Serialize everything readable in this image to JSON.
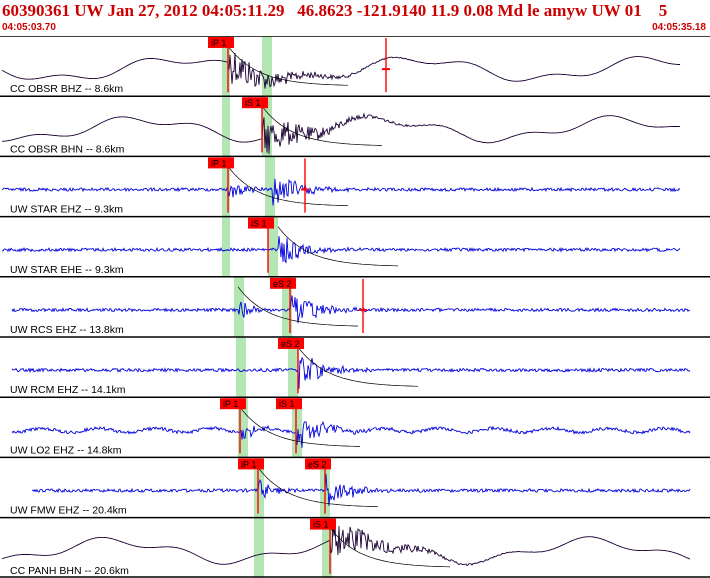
{
  "header": {
    "title": "60390361 UW Jan 27, 2012 04:05:11.29   46.8623 -121.9140 11.9 0.08 Md le amyw UW 01    5",
    "start_time": "04:05:03.70",
    "end_time": "04:05:35.18"
  },
  "colors": {
    "header_text": "#cc0000",
    "broadband_trace": "#1a0033",
    "short_period_trace": "#0000dd",
    "pick_marker": "#ff0000",
    "pick_window": "#b3e6b3"
  },
  "traces": [
    {
      "label": "CC OBSR BHZ -- 8.6km",
      "style": "broadband",
      "picks": [
        "iP 1",
        ""
      ],
      "phase": "P+S"
    },
    {
      "label": "CC OBSR BHN -- 8.6km",
      "style": "broadband",
      "picks": [
        "iS 1"
      ],
      "phase": "S"
    },
    {
      "label": "UW STAR EHZ -- 9.3km",
      "style": "short",
      "picks": [
        "iP 1"
      ],
      "phase": "P"
    },
    {
      "label": "UW STAR EHE -- 9.3km",
      "style": "short",
      "picks": [
        "iS 1"
      ],
      "phase": "S"
    },
    {
      "label": "UW RCS EHZ -- 13.8km",
      "style": "short",
      "picks": [
        "eS 2"
      ],
      "phase": "S"
    },
    {
      "label": "UW RCM EHZ -- 14.1km",
      "style": "short",
      "picks": [
        "eS 2"
      ],
      "phase": "S"
    },
    {
      "label": "UW LO2 EHZ -- 14.8km",
      "style": "short",
      "picks": [
        "iP 1",
        "iS 1"
      ],
      "phase": "P+S"
    },
    {
      "label": "UW FMW EHZ -- 20.4km",
      "style": "short",
      "picks": [
        "iP 1",
        "eS 2"
      ],
      "phase": "P+S"
    },
    {
      "label": "CC PANH BHN -- 20.6km",
      "style": "broadband",
      "picks": [
        "iS 1"
      ],
      "phase": "S"
    }
  ]
}
